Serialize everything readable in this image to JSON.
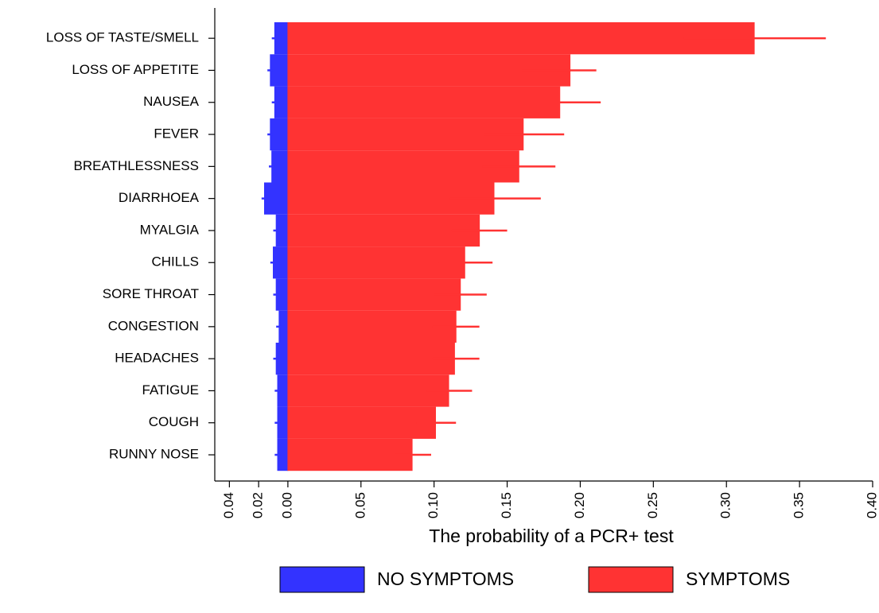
{
  "chart_data": {
    "type": "bar",
    "orientation": "horizontal",
    "x_label": "The probability of a PCR+ test",
    "categories": [
      "LOSS OF TASTE/SMELL",
      "LOSS OF APPETITE",
      "NAUSEA",
      "FEVER",
      "BREATHLESSNESS",
      "DIARRHOEA",
      "MYALGIA",
      "CHILLS",
      "SORE THROAT",
      "CONGESTION",
      "HEADACHES",
      "FATIGUE",
      "COUGH",
      "RUNNY NOSE"
    ],
    "series": [
      {
        "name": "NO SYMPTOMS",
        "color": "#3333ff",
        "values": [
          -0.009,
          -0.012,
          -0.009,
          -0.012,
          -0.011,
          -0.016,
          -0.008,
          -0.01,
          -0.008,
          -0.006,
          -0.008,
          -0.007,
          -0.007,
          -0.007
        ],
        "lower": [
          -0.011,
          -0.014,
          -0.011,
          -0.014,
          -0.013,
          -0.018,
          -0.01,
          -0.012,
          -0.01,
          -0.008,
          -0.01,
          -0.009,
          -0.009,
          -0.009
        ],
        "upper": [
          -0.007,
          -0.01,
          -0.007,
          -0.01,
          -0.009,
          -0.014,
          -0.006,
          -0.008,
          -0.006,
          -0.004,
          -0.006,
          -0.005,
          -0.005,
          -0.005
        ]
      },
      {
        "name": "SYMPTOMS",
        "color": "#ff3333",
        "values": [
          0.319,
          0.193,
          0.186,
          0.161,
          0.158,
          0.141,
          0.131,
          0.121,
          0.118,
          0.115,
          0.114,
          0.11,
          0.101,
          0.085
        ],
        "lower": [
          0.271,
          0.16,
          0.158,
          0.134,
          0.133,
          0.111,
          0.112,
          0.103,
          0.1,
          0.099,
          0.099,
          0.095,
          0.088,
          0.073
        ],
        "upper": [
          0.368,
          0.211,
          0.214,
          0.189,
          0.183,
          0.173,
          0.15,
          0.14,
          0.136,
          0.131,
          0.131,
          0.126,
          0.115,
          0.098
        ]
      }
    ],
    "xlim": [
      -0.05,
      0.4
    ],
    "xticks": [
      {
        "value": -0.04,
        "label": "0.04"
      },
      {
        "value": -0.02,
        "label": "0.02"
      },
      {
        "value": 0,
        "label": "0.00"
      },
      {
        "value": 0.05,
        "label": "0.05"
      },
      {
        "value": 0.1,
        "label": "0.10"
      },
      {
        "value": 0.15,
        "label": "0.15"
      },
      {
        "value": 0.2,
        "label": "0.20"
      },
      {
        "value": 0.25,
        "label": "0.25"
      },
      {
        "value": 0.3,
        "label": "0.30"
      },
      {
        "value": 0.35,
        "label": "0.35"
      },
      {
        "value": 0.4,
        "label": "0.40"
      }
    ],
    "legend": "bottom"
  }
}
